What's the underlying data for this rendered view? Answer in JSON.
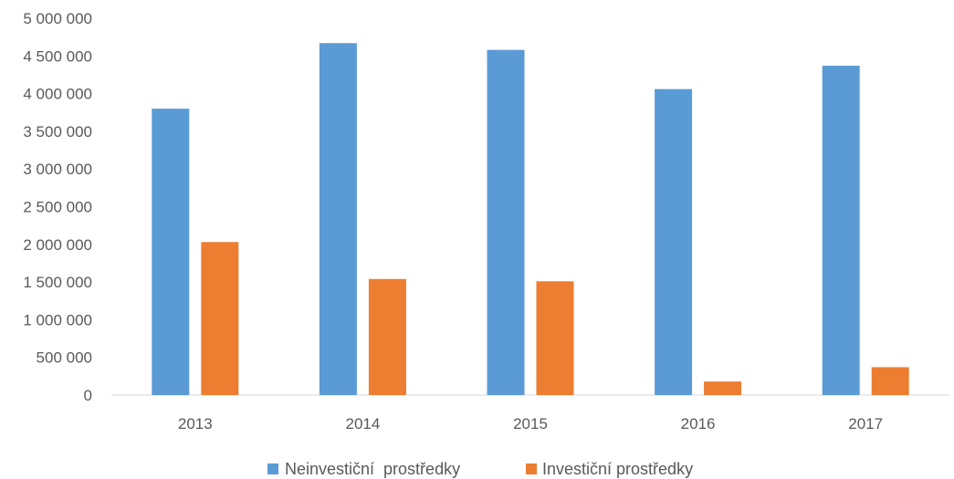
{
  "chart_data": {
    "type": "bar",
    "categories": [
      "2013",
      "2014",
      "2015",
      "2016",
      "2017"
    ],
    "series": [
      {
        "name": "Neinvestiční  prostředky",
        "color": "#5B9BD5",
        "values": [
          3800000,
          4670000,
          4580000,
          4060000,
          4370000
        ]
      },
      {
        "name": "Investiční prostředky",
        "color": "#ED7D31",
        "values": [
          2030000,
          1540000,
          1510000,
          180000,
          370000
        ]
      }
    ],
    "y_ticks": [
      "0",
      "500 000",
      "1 000 000",
      "1 500 000",
      "2 000 000",
      "2 500 000",
      "3 000 000",
      "3 500 000",
      "4 000 000",
      "4 500 000",
      "5 000 000"
    ],
    "ylim": [
      0,
      5000000
    ],
    "grid": false,
    "legend_position": "bottom",
    "title": "",
    "xlabel": "",
    "ylabel": ""
  }
}
